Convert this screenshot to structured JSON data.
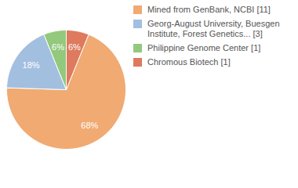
{
  "chart_data": {
    "type": "pie",
    "categories": [
      "Mined from GenBank, NCBI [11]",
      "Georg-August University, Buesgen Institute, Forest Genetics... [3]",
      "Philippine Genome Center [1]",
      "Chromous Biotech [1]"
    ],
    "values": [
      68,
      18,
      6,
      6
    ],
    "value_labels": [
      "68%",
      "18%",
      "6%",
      "6%"
    ],
    "colors": [
      "#f0aa72",
      "#a3bfe0",
      "#92c97c",
      "#de7a5d"
    ],
    "data_labels": true,
    "legend": "right"
  }
}
